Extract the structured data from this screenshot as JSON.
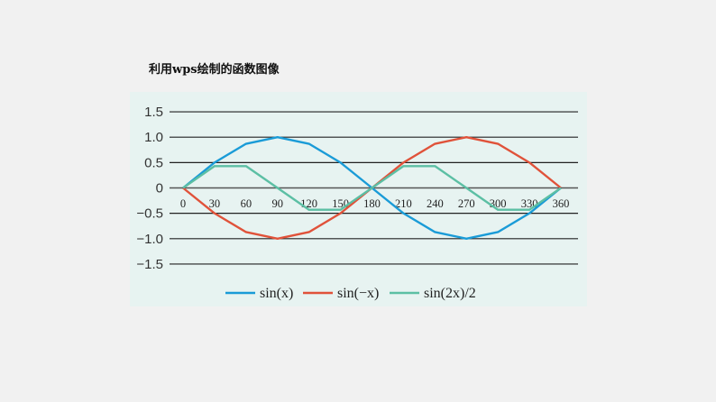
{
  "title": "利用wps绘制的函数图像",
  "chart_data": {
    "type": "line",
    "title": "利用wps绘制的函数图像",
    "xlabel": "",
    "ylabel": "",
    "x": [
      0,
      30,
      60,
      90,
      120,
      150,
      180,
      210,
      240,
      270,
      300,
      330,
      360
    ],
    "y_ticks": [
      "1.5",
      "1.0",
      "0.5",
      "0",
      "−0.5",
      "−1.0",
      "−1.5"
    ],
    "ylim": [
      -1.5,
      1.5
    ],
    "grid": "horizontal",
    "legend_position": "bottom",
    "series": [
      {
        "name": "sin(x)",
        "color": "#1a9bd7",
        "values": [
          0,
          0.5,
          0.87,
          1,
          0.87,
          0.5,
          0,
          -0.5,
          -0.87,
          -1,
          -0.87,
          -0.5,
          0
        ]
      },
      {
        "name": "sin(−x)",
        "color": "#e0523a",
        "values": [
          0,
          -0.5,
          -0.87,
          -1,
          -0.87,
          -0.5,
          0,
          0.5,
          0.87,
          1,
          0.87,
          0.5,
          0
        ]
      },
      {
        "name": "sin(2x)/2",
        "color": "#5cbfa4",
        "values": [
          0,
          0.43,
          0.43,
          0,
          -0.43,
          -0.43,
          0,
          0.43,
          0.43,
          0,
          -0.43,
          -0.43,
          0
        ]
      }
    ]
  }
}
